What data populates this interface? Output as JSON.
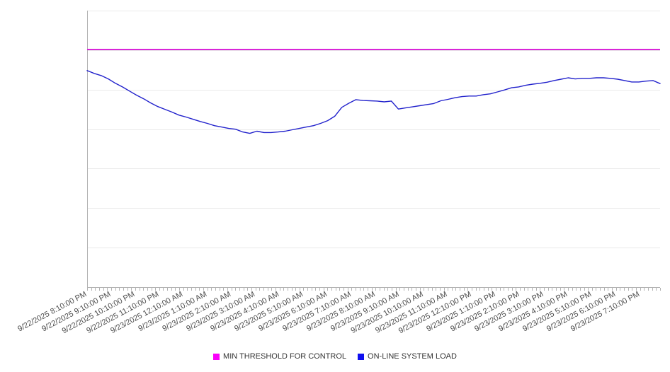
{
  "chart_data": {
    "type": "line",
    "legend_position": "bottom",
    "grid": "horizontal-only",
    "x_axis": {
      "labels": [
        "9/22/2025 8:10:00 PM",
        "9/22/2025 9:10:00 PM",
        "9/22/2025 10:10:00 PM",
        "9/22/2025 11:10:00 PM",
        "9/23/2025 12:10:00 AM",
        "9/23/2025 1:10:00 AM",
        "9/23/2025 2:10:00 AM",
        "9/23/2025 3:10:00 AM",
        "9/23/2025 4:10:00 AM",
        "9/23/2025 5:10:00 AM",
        "9/23/2025 6:10:00 AM",
        "9/23/2025 7:10:00 AM",
        "9/23/2025 8:10:00 AM",
        "9/23/2025 9:10:00 AM",
        "9/23/2025 10:10:00 AM",
        "9/23/2025 11:10:00 AM",
        "9/23/2025 12:10:00 PM",
        "9/23/2025 1:10:00 PM",
        "9/23/2025 2:10:00 PM",
        "9/23/2025 3:10:00 PM",
        "9/23/2025 4:10:00 PM",
        "9/23/2025 5:10:00 PM",
        "9/23/2025 6:10:00 PM",
        "9/23/2025 7:10:00 PM"
      ],
      "minor_tick_count": 144,
      "minor_ticks_per_label": 6,
      "label_rotation_deg": -28
    },
    "y_axis": {
      "labels_visible": false,
      "min": 0,
      "max": 100,
      "values_are_percent_of_plot_height": true,
      "gridline_values": [
        14.3,
        28.6,
        42.9,
        57.1,
        71.4,
        85.7,
        100
      ]
    },
    "series": [
      {
        "name": "MIN THRESHOLD FOR CONTROL",
        "type": "horizontal-threshold-line",
        "color": "#d926d9",
        "swatch_color": "#fa00fa",
        "value": 85.9
      },
      {
        "name": "ON-LINE SYSTEM LOAD",
        "type": "line",
        "color": "#2222cc",
        "swatch_color": "#1010f0",
        "values": [
          78.3,
          77.3,
          76.5,
          75.3,
          73.7,
          72.4,
          70.9,
          69.4,
          68.1,
          66.6,
          65.3,
          64.3,
          63.3,
          62.2,
          61.5,
          60.7,
          59.9,
          59.2,
          58.4,
          57.9,
          57.4,
          57.1,
          56.1,
          55.6,
          56.4,
          55.9,
          55.9,
          56.1,
          56.4,
          56.9,
          57.4,
          57.9,
          58.4,
          59.2,
          60.2,
          61.8,
          65.0,
          66.5,
          67.8,
          67.5,
          67.4,
          67.3,
          67.0,
          67.3,
          64.4,
          64.8,
          65.2,
          65.6,
          66.0,
          66.4,
          67.4,
          67.9,
          68.5,
          68.9,
          69.1,
          69.1,
          69.6,
          69.9,
          70.6,
          71.3,
          72.1,
          72.4,
          73.0,
          73.4,
          73.7,
          74.1,
          74.7,
          75.2,
          75.7,
          75.3,
          75.5,
          75.5,
          75.7,
          75.7,
          75.5,
          75.2,
          74.7,
          74.2,
          74.2,
          74.5,
          74.7,
          73.6
        ]
      }
    ]
  },
  "colors": {
    "background": "#ffffff",
    "gridline": "#eaeaea",
    "axis": "#b3b3b3",
    "tick_label": "#4a4a4a",
    "legend_label": "#333333"
  }
}
